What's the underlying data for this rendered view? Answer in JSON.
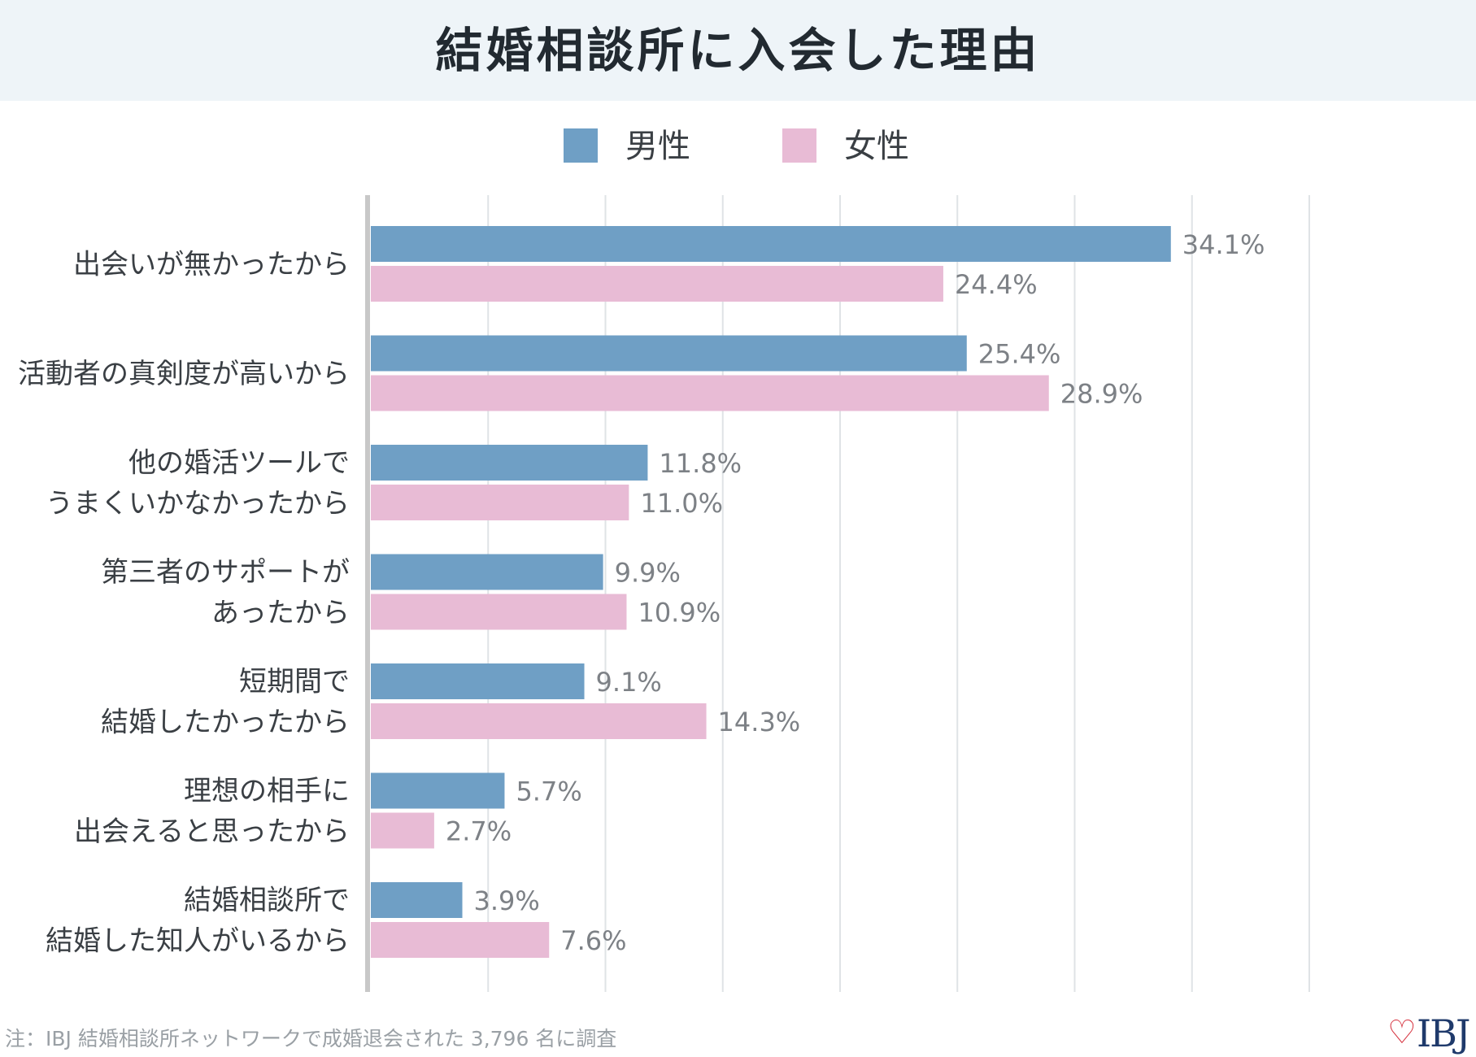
{
  "title": "結婚相談所に入会した理由",
  "legend": {
    "male_label": "男性",
    "female_label": "女性"
  },
  "colors": {
    "male": "#6f9fc5",
    "female": "#e8bbd5",
    "grid": "#dfe3e6",
    "axis": "#c8c8c8",
    "title_band": "#eef4f8"
  },
  "chart_data": {
    "type": "bar",
    "orientation": "horizontal",
    "categories": [
      [
        "出会いが無かったから"
      ],
      [
        "活動者の真剣度が高いから"
      ],
      [
        "他の婚活ツールで",
        "うまくいかなかったから"
      ],
      [
        "第三者のサポートが",
        "あったから"
      ],
      [
        "短期間で",
        "結婚したかったから"
      ],
      [
        "理想の相手に",
        "出会えると思ったから"
      ],
      [
        "結婚相談所で",
        "結婚した知人がいるから"
      ]
    ],
    "series": [
      {
        "name": "男性",
        "values": [
          34.1,
          25.4,
          11.8,
          9.9,
          9.1,
          5.7,
          3.9
        ]
      },
      {
        "name": "女性",
        "values": [
          24.4,
          28.9,
          11.0,
          10.9,
          14.3,
          2.7,
          7.6
        ]
      }
    ],
    "value_labels": [
      [
        "34.1%",
        "25.4%",
        "11.8%",
        "9.9%",
        "9.1%",
        "5.7%",
        "3.9%"
      ],
      [
        "24.4%",
        "28.9%",
        "11.0%",
        "10.9%",
        "14.3%",
        "2.7%",
        "7.6%"
      ]
    ],
    "xlim": [
      0,
      40
    ],
    "grid": true,
    "legend_position": "top-center"
  },
  "footnote": "注：IBJ 結婚相談所ネットワークで成婚退会された 3,796 名に調査",
  "logo": {
    "text": "IBJ",
    "icon": "heart-icon"
  }
}
